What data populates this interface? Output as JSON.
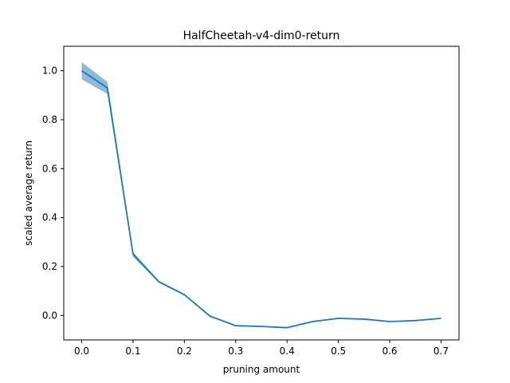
{
  "chart_data": {
    "type": "line",
    "title": "HalfCheetah-v4-dim0-return",
    "xlabel": "pruning amount",
    "ylabel": "scaled average return",
    "xlim": [
      -0.035,
      0.735
    ],
    "ylim": [
      -0.1,
      1.1
    ],
    "x_ticks": [
      0.0,
      0.1,
      0.2,
      0.3,
      0.4,
      0.5,
      0.6,
      0.7
    ],
    "x_tick_labels": [
      "0.0",
      "0.1",
      "0.2",
      "0.3",
      "0.4",
      "0.5",
      "0.6",
      "0.7"
    ],
    "y_ticks": [
      0.0,
      0.2,
      0.4,
      0.6,
      0.8,
      1.0
    ],
    "y_tick_labels": [
      "0.0",
      "0.2",
      "0.4",
      "0.6",
      "0.8",
      "1.0"
    ],
    "grid": false,
    "legend": "none",
    "x": [
      0.0,
      0.05,
      0.1,
      0.15,
      0.2,
      0.25,
      0.3,
      0.35,
      0.4,
      0.45,
      0.5,
      0.55,
      0.6,
      0.65,
      0.7
    ],
    "series": [
      {
        "values": [
          1.0,
          0.93,
          0.25,
          0.138,
          0.085,
          -0.003,
          -0.042,
          -0.045,
          -0.05,
          -0.025,
          -0.012,
          -0.015,
          -0.025,
          -0.021,
          -0.012
        ],
        "lower": [
          0.965,
          0.905,
          0.24,
          0.134,
          0.082,
          -0.005,
          -0.044,
          -0.047,
          -0.052,
          -0.027,
          -0.014,
          -0.017,
          -0.027,
          -0.023,
          -0.014
        ],
        "upper": [
          1.035,
          0.955,
          0.26,
          0.142,
          0.088,
          -0.001,
          -0.04,
          -0.043,
          -0.048,
          -0.023,
          -0.01,
          -0.013,
          -0.023,
          -0.019,
          -0.01
        ],
        "color": "#1f77b4",
        "band_color": "#1f77b4",
        "band_opacity": 0.5
      }
    ]
  }
}
